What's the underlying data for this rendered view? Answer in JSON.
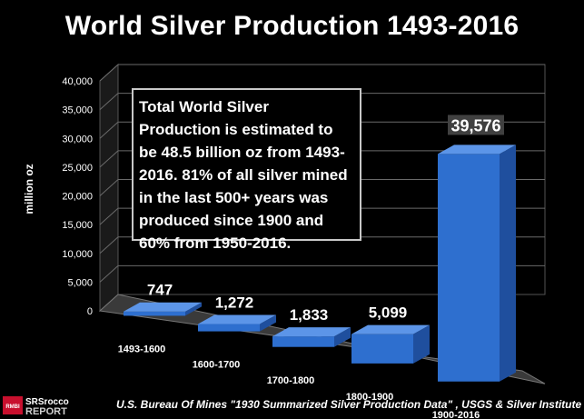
{
  "chart_data": {
    "type": "bar",
    "title": "World Silver Production 1493-2016",
    "ylabel": "million oz",
    "xlabel": "",
    "categories": [
      "1493-1600",
      "1600-1700",
      "1700-1800",
      "1800-1900",
      "1900-2016"
    ],
    "values": [
      747,
      1272,
      1833,
      5099,
      39576
    ],
    "value_labels": [
      "747",
      "1,272",
      "1,833",
      "5,099",
      "39,576"
    ],
    "ylim": [
      0,
      40000
    ],
    "yticks": [
      "0",
      "5,000",
      "10,000",
      "15,000",
      "20,000",
      "25,000",
      "30,000",
      "35,000",
      "40,000"
    ],
    "grid": true,
    "three_d": true,
    "bar_color": "#2e6fcf",
    "annotation": "Total World Silver Production is estimated to be 48.5 billion oz from 1493-2016.  81% of all silver mined in the last 500+ years was produced since 1900 and 60% from 1950-2016."
  },
  "logo": {
    "line1": "SRSrocco",
    "line2": "REPORT",
    "badge": "RMBI"
  },
  "source": "U.S. Bureau Of Mines \"1930 Summarized Silver Production Data\" , USGS & Silver Institute"
}
